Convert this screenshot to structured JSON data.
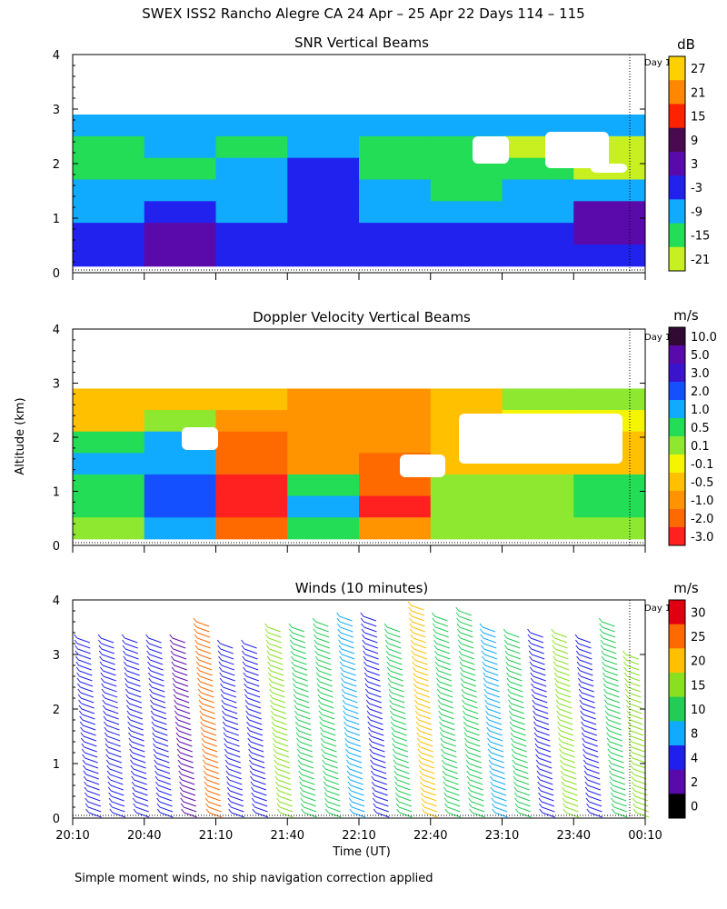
{
  "title": "SWEX ISS2 Rancho Alegre CA  24 Apr – 25 Apr 22 Days 114 – 115",
  "ylabel": "Altitude (km)",
  "xlabel": "Time (UT)",
  "footnote": "Simple moment winds, no ship navigation correction applied",
  "day_marker": "Day 1",
  "chart_data": [
    {
      "type": "heatmap",
      "title": "SNR Vertical Beams",
      "xlabel": "Time (UT)",
      "ylabel": "Altitude (km)",
      "ylim": [
        0,
        4
      ],
      "yticks": [
        "0",
        "1",
        "2",
        "3",
        "4"
      ],
      "xticks": [
        "20:10",
        "20:40",
        "21:10",
        "21:40",
        "22:10",
        "22:40",
        "23:10",
        "23:40",
        "00:10"
      ],
      "colorbar": {
        "unit": "dB",
        "labels": [
          "27",
          "21",
          "15",
          "9",
          "3",
          "-3",
          "-9",
          "-15",
          "-21"
        ],
        "colors": [
          "#ffd000",
          "#ff8800",
          "#ff2200",
          "#4a0a50",
          "#5a0aaa",
          "#2222ee",
          "#10aaff",
          "#22dd55",
          "#c8f020"
        ]
      },
      "data_top_km": 2.9,
      "rows_altitude_km": [
        2.7,
        2.3,
        1.9,
        1.5,
        1.1,
        0.7,
        0.3
      ],
      "rows_time_columns": [
        "20:10",
        "20:40",
        "21:10",
        "21:40",
        "22:10",
        "22:40",
        "23:10",
        "23:40"
      ],
      "values_db": [
        [
          -9,
          -9,
          -9,
          -9,
          -9,
          -9,
          -9,
          -9
        ],
        [
          -15,
          -9,
          -15,
          -9,
          -15,
          -15,
          -21,
          -21
        ],
        [
          -15,
          -15,
          -9,
          -3,
          -15,
          -15,
          -15,
          -21
        ],
        [
          -9,
          -9,
          -9,
          -3,
          -9,
          -15,
          -9,
          -9
        ],
        [
          -9,
          -3,
          -9,
          -3,
          -9,
          -9,
          -9,
          3
        ],
        [
          -3,
          3,
          -3,
          -3,
          -3,
          -3,
          -3,
          3
        ],
        [
          -3,
          3,
          -3,
          -3,
          -3,
          -3,
          -3,
          -3
        ]
      ]
    },
    {
      "type": "heatmap",
      "title": "Doppler Velocity Vertical Beams",
      "xlabel": "Time (UT)",
      "ylabel": "Altitude (km)",
      "ylim": [
        0,
        4
      ],
      "yticks": [
        "0",
        "1",
        "2",
        "3",
        "4"
      ],
      "xticks": [
        "20:10",
        "20:40",
        "21:10",
        "21:40",
        "22:10",
        "22:40",
        "23:10",
        "23:40",
        "00:10"
      ],
      "colorbar": {
        "unit": "m/s",
        "labels": [
          "10.0",
          "5.0",
          "3.0",
          "2.0",
          "1.0",
          "0.5",
          "0.1",
          "-0.1",
          "-0.5",
          "-1.0",
          "-2.0",
          "-3.0"
        ],
        "colors": [
          "#300a30",
          "#5a0aaa",
          "#3a14cc",
          "#1450ff",
          "#10aaff",
          "#22dd55",
          "#8ee830",
          "#f5f500",
          "#ffc000",
          "#ff9400",
          "#ff6a00",
          "#ff2020"
        ]
      },
      "data_top_km": 2.9,
      "rows_altitude_km": [
        2.7,
        2.3,
        1.9,
        1.5,
        1.1,
        0.7,
        0.3
      ],
      "rows_time_columns": [
        "20:10",
        "20:40",
        "21:10",
        "21:40",
        "22:10",
        "22:40",
        "23:10",
        "23:40"
      ],
      "values_ms": [
        [
          -0.5,
          -0.5,
          -0.5,
          -1.0,
          -1.0,
          -0.5,
          0.1,
          0.1
        ],
        [
          -0.5,
          0.1,
          -1.0,
          -1.0,
          -1.0,
          -0.5,
          -0.1,
          -0.1
        ],
        [
          0.5,
          1.0,
          -2.0,
          -1.0,
          -1.0,
          -0.5,
          -0.5,
          -0.5
        ],
        [
          1.0,
          1.0,
          -2.0,
          -1.0,
          -2.0,
          -0.5,
          -0.5,
          -0.5
        ],
        [
          0.5,
          2.0,
          -3.0,
          0.5,
          -2.0,
          0.1,
          0.1,
          0.5
        ],
        [
          0.5,
          2.0,
          -3.0,
          1.0,
          -3.0,
          0.1,
          0.1,
          0.5
        ],
        [
          0.1,
          1.0,
          -2.0,
          0.5,
          -1.0,
          0.1,
          0.1,
          0.1
        ]
      ]
    },
    {
      "type": "scatter",
      "title": "Winds (10 minutes)",
      "xlabel": "Time (UT)",
      "ylabel": "Altitude (km)",
      "ylim": [
        0,
        4
      ],
      "yticks": [
        "0",
        "1",
        "2",
        "3",
        "4"
      ],
      "xticks": [
        "20:10",
        "20:40",
        "21:10",
        "21:40",
        "22:10",
        "22:40",
        "23:10",
        "23:40",
        "00:10"
      ],
      "colorbar": {
        "unit": "m/s",
        "labels": [
          "30",
          "25",
          "20",
          "15",
          "10",
          "8",
          "4",
          "2",
          "0"
        ],
        "colors": [
          "#e00010",
          "#ff6a00",
          "#ffc000",
          "#88e020",
          "#22cc55",
          "#10aaff",
          "#2020ee",
          "#5a0aaa",
          "#000000"
        ]
      },
      "profile_times": [
        "20:17",
        "20:27",
        "20:37",
        "20:47",
        "20:57",
        "21:07",
        "21:17",
        "21:27",
        "21:37",
        "21:47",
        "21:57",
        "22:07",
        "22:17",
        "22:27",
        "22:37",
        "22:47",
        "22:57",
        "23:07",
        "23:17",
        "23:27",
        "23:37",
        "23:47",
        "23:57",
        "00:07"
      ],
      "profile_top_km": [
        3.4,
        3.4,
        3.4,
        3.4,
        3.4,
        3.7,
        3.3,
        3.3,
        3.6,
        3.6,
        3.7,
        3.8,
        3.8,
        3.6,
        4.0,
        3.8,
        3.9,
        3.6,
        3.5,
        3.5,
        3.5,
        3.4,
        3.7,
        3.1
      ],
      "speed_ms": [
        4,
        4,
        4,
        4,
        2,
        25,
        4,
        4,
        15,
        10,
        10,
        8,
        4,
        10,
        20,
        10,
        10,
        8,
        10,
        4,
        15,
        4,
        10,
        15
      ]
    }
  ]
}
